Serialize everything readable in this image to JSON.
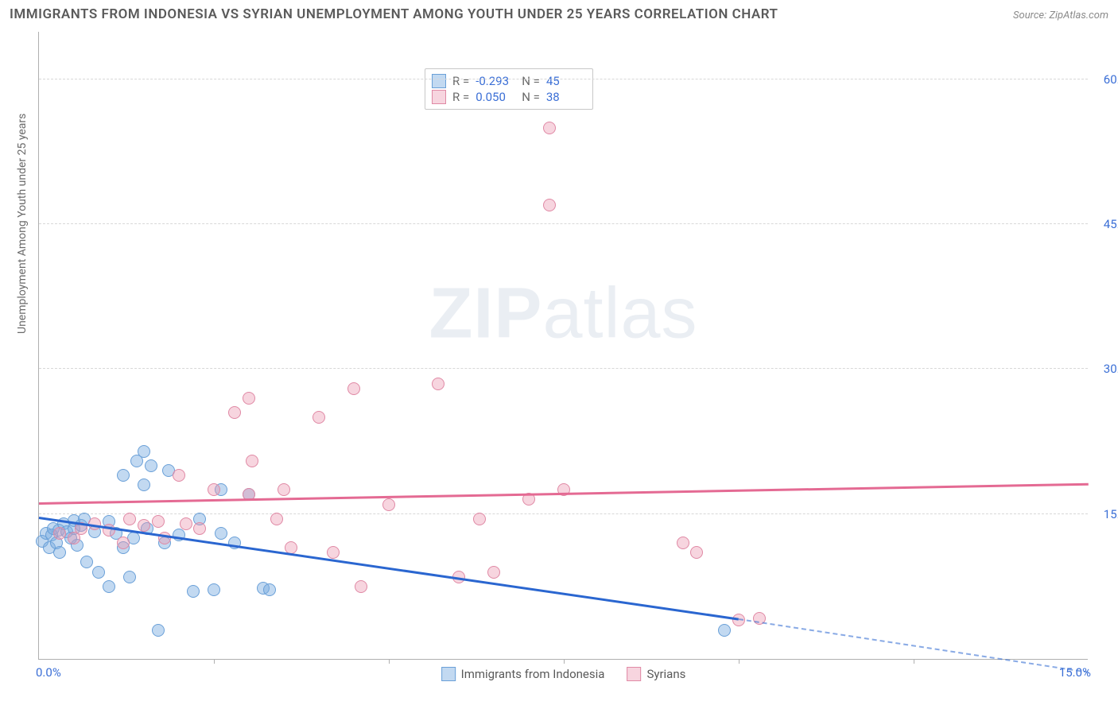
{
  "title": "IMMIGRANTS FROM INDONESIA VS SYRIAN UNEMPLOYMENT AMONG YOUTH UNDER 25 YEARS CORRELATION CHART",
  "source_label": "Source: ",
  "source_value": "ZipAtlas.com",
  "y_axis_label": "Unemployment Among Youth under 25 years",
  "watermark_a": "ZIP",
  "watermark_b": "atlas",
  "chart": {
    "type": "scatter",
    "xlim": [
      0,
      15
    ],
    "ylim": [
      0,
      65
    ],
    "x_ticks": [
      "0.0%",
      "15.0%"
    ],
    "y_ticks": [
      {
        "v": 15,
        "label": "15.0%"
      },
      {
        "v": 30,
        "label": "30.0%"
      },
      {
        "v": 45,
        "label": "45.0%"
      },
      {
        "v": 60,
        "label": "60.0%"
      }
    ],
    "x_minor_ticks": [
      2.5,
      5.0,
      7.5,
      10.0,
      12.5
    ],
    "background_color": "#ffffff",
    "grid_color": "#d8d8d8",
    "series": [
      {
        "name": "Immigrants from Indonesia",
        "color_fill": "rgba(120,170,225,0.45)",
        "color_stroke": "#6aa0d8",
        "marker_size": 16,
        "r_label": "R = ",
        "r_value": "-0.293",
        "n_label": "N = ",
        "n_value": "45",
        "trend": {
          "x0": 0,
          "y0": 14.5,
          "x1": 10,
          "y1": 4.0,
          "color": "#2a66d0",
          "dash_to_x": 15,
          "dash_to_y": -1.5
        },
        "points": [
          [
            0.05,
            12.2
          ],
          [
            0.1,
            13.0
          ],
          [
            0.15,
            11.5
          ],
          [
            0.18,
            12.8
          ],
          [
            0.2,
            13.5
          ],
          [
            0.25,
            12.0
          ],
          [
            0.28,
            13.3
          ],
          [
            0.3,
            11.0
          ],
          [
            0.35,
            14.0
          ],
          [
            0.4,
            13.2
          ],
          [
            0.45,
            12.5
          ],
          [
            0.5,
            14.3
          ],
          [
            0.5,
            13.5
          ],
          [
            0.55,
            11.8
          ],
          [
            0.6,
            13.8
          ],
          [
            0.65,
            14.5
          ],
          [
            0.68,
            10.0
          ],
          [
            0.8,
            13.2
          ],
          [
            0.85,
            9.0
          ],
          [
            1.0,
            14.2
          ],
          [
            1.0,
            7.5
          ],
          [
            1.1,
            13.0
          ],
          [
            1.2,
            11.5
          ],
          [
            1.2,
            19.0
          ],
          [
            1.3,
            8.5
          ],
          [
            1.35,
            12.5
          ],
          [
            1.4,
            20.5
          ],
          [
            1.5,
            21.5
          ],
          [
            1.5,
            18.0
          ],
          [
            1.55,
            13.5
          ],
          [
            1.6,
            20.0
          ],
          [
            1.7,
            3.0
          ],
          [
            1.8,
            12.0
          ],
          [
            1.85,
            19.5
          ],
          [
            2.0,
            12.8
          ],
          [
            2.2,
            7.0
          ],
          [
            2.3,
            14.5
          ],
          [
            2.5,
            7.2
          ],
          [
            2.6,
            17.5
          ],
          [
            2.6,
            13.0
          ],
          [
            2.8,
            12.0
          ],
          [
            3.0,
            17.0
          ],
          [
            3.2,
            7.3
          ],
          [
            3.3,
            7.2
          ],
          [
            9.8,
            3.0
          ]
        ]
      },
      {
        "name": "Syrians",
        "color_fill": "rgba(235,150,175,0.40)",
        "color_stroke": "#e089a5",
        "marker_size": 16,
        "r_label": "R = ",
        "r_value": "0.050",
        "n_label": "N = ",
        "n_value": "38",
        "trend": {
          "x0": 0,
          "y0": 16.0,
          "x1": 15,
          "y1": 18.0,
          "color": "#e46a93"
        },
        "points": [
          [
            0.3,
            13.0
          ],
          [
            0.5,
            12.5
          ],
          [
            0.6,
            13.5
          ],
          [
            0.8,
            14.0
          ],
          [
            1.0,
            13.3
          ],
          [
            1.2,
            12.0
          ],
          [
            1.3,
            14.5
          ],
          [
            1.5,
            13.8
          ],
          [
            1.7,
            14.2
          ],
          [
            1.8,
            12.5
          ],
          [
            2.0,
            19.0
          ],
          [
            2.1,
            14.0
          ],
          [
            2.3,
            13.5
          ],
          [
            2.5,
            17.5
          ],
          [
            2.8,
            25.5
          ],
          [
            3.0,
            17.0
          ],
          [
            3.0,
            27.0
          ],
          [
            3.05,
            20.5
          ],
          [
            3.4,
            14.5
          ],
          [
            3.5,
            17.5
          ],
          [
            3.6,
            11.5
          ],
          [
            4.0,
            25.0
          ],
          [
            4.2,
            11.0
          ],
          [
            4.5,
            28.0
          ],
          [
            4.6,
            7.5
          ],
          [
            5.0,
            16.0
          ],
          [
            5.7,
            28.5
          ],
          [
            6.0,
            8.5
          ],
          [
            6.3,
            14.5
          ],
          [
            6.5,
            9.0
          ],
          [
            7.0,
            16.5
          ],
          [
            7.3,
            55.0
          ],
          [
            7.3,
            47.0
          ],
          [
            7.5,
            17.5
          ],
          [
            9.2,
            12.0
          ],
          [
            9.4,
            11.0
          ],
          [
            10.0,
            4.0
          ],
          [
            10.3,
            4.2
          ]
        ]
      }
    ]
  }
}
